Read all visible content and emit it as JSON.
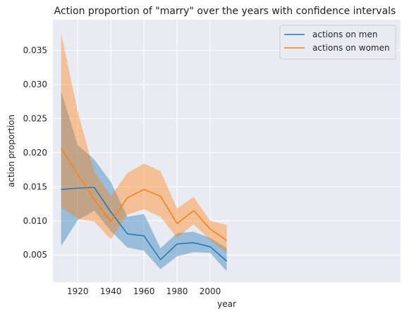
{
  "chart_data": {
    "type": "line",
    "title": "Action proportion of \"marry\" over the years with confidence intervals",
    "xlabel": "year",
    "ylabel": "action proportion",
    "xlim": [
      1905,
      2115
    ],
    "ylim": [
      0.001,
      0.0395
    ],
    "x_ticks": [
      1920,
      1940,
      1960,
      1980,
      2000
    ],
    "x_tick_labels": [
      "1920",
      "1940",
      "1960",
      "1980",
      "2000"
    ],
    "y_ticks": [
      0.005,
      0.01,
      0.015,
      0.02,
      0.025,
      0.03,
      0.035
    ],
    "y_tick_labels": [
      "0.005",
      "0.010",
      "0.015",
      "0.020",
      "0.025",
      "0.030",
      "0.035"
    ],
    "grid": true,
    "legend_position": "upper right",
    "x": [
      1910,
      1920,
      1930,
      1940,
      1950,
      1960,
      1970,
      1980,
      1990,
      2000,
      2010
    ],
    "series": [
      {
        "name": "actions on men",
        "color": "#1f77b4",
        "values": [
          0.0146,
          0.0148,
          0.0149,
          0.0113,
          0.0081,
          0.0078,
          0.0043,
          0.0066,
          0.0068,
          0.0062,
          0.0041
        ],
        "ci_lower": [
          0.0063,
          0.0101,
          0.0115,
          0.0085,
          0.0061,
          0.0056,
          0.0029,
          0.0048,
          0.0054,
          0.0053,
          0.0026
        ],
        "ci_upper": [
          0.029,
          0.0211,
          0.019,
          0.0157,
          0.0106,
          0.011,
          0.006,
          0.0082,
          0.0084,
          0.0075,
          0.006
        ]
      },
      {
        "name": "actions on women",
        "color": "#ff7f0e",
        "values": [
          0.0207,
          0.0168,
          0.0131,
          0.0099,
          0.0134,
          0.0146,
          0.0136,
          0.0096,
          0.0115,
          0.0088,
          0.0071
        ],
        "ci_lower": [
          0.012,
          0.0103,
          0.0099,
          0.0073,
          0.0109,
          0.0117,
          0.0106,
          0.0075,
          0.0095,
          0.0072,
          0.0053
        ],
        "ci_upper": [
          0.0375,
          0.026,
          0.0172,
          0.0136,
          0.017,
          0.0184,
          0.0173,
          0.0118,
          0.0135,
          0.01,
          0.0094
        ]
      }
    ]
  }
}
